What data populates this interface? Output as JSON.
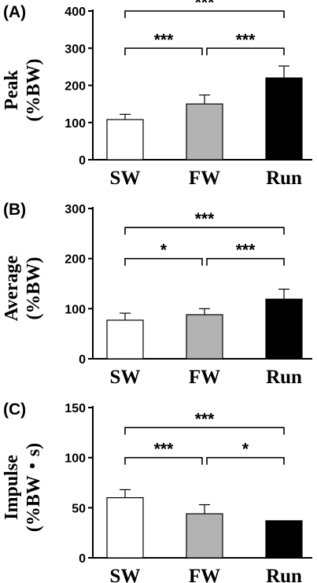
{
  "chart_data": [
    {
      "panel": "(A)",
      "type": "bar",
      "ylabel_line1": "Peak",
      "ylabel_line2": "(%BW)",
      "ylim": [
        0,
        400
      ],
      "yticks": [
        0,
        100,
        200,
        300,
        400
      ],
      "categories": [
        "SW",
        "FW",
        "Run"
      ],
      "values": [
        108,
        150,
        220
      ],
      "errors": [
        14,
        24,
        32
      ],
      "bar_colors": [
        "#ffffff",
        "#b3b3b3",
        "#000000"
      ],
      "significance": [
        {
          "from": 0,
          "to": 2,
          "label": "***",
          "level": 400
        },
        {
          "from": 0,
          "to": 1,
          "label": "***",
          "level": 300
        },
        {
          "from": 1,
          "to": 2,
          "label": "***",
          "level": 300
        }
      ]
    },
    {
      "panel": "(B)",
      "type": "bar",
      "ylabel_line1": "Average",
      "ylabel_line2": "(%BW)",
      "ylim": [
        0,
        300
      ],
      "yticks": [
        0,
        100,
        200,
        300
      ],
      "categories": [
        "SW",
        "FW",
        "Run"
      ],
      "values": [
        77,
        88,
        119
      ],
      "errors": [
        14,
        12,
        20
      ],
      "bar_colors": [
        "#ffffff",
        "#b3b3b3",
        "#000000"
      ],
      "significance": [
        {
          "from": 0,
          "to": 2,
          "label": "***",
          "level": 262
        },
        {
          "from": 0,
          "to": 1,
          "label": "*",
          "level": 200
        },
        {
          "from": 1,
          "to": 2,
          "label": "***",
          "level": 200
        }
      ]
    },
    {
      "panel": "(C)",
      "type": "bar",
      "ylabel_line1": "Impulse",
      "ylabel_line2": "(%BW・s)",
      "ylim": [
        0,
        150
      ],
      "yticks": [
        0,
        50,
        100,
        150
      ],
      "categories": [
        "SW",
        "FW",
        "Run"
      ],
      "values": [
        60,
        44,
        37
      ],
      "errors": [
        8,
        9,
        0
      ],
      "bar_colors": [
        "#ffffff",
        "#b3b3b3",
        "#000000"
      ],
      "significance": [
        {
          "from": 0,
          "to": 2,
          "label": "***",
          "level": 130
        },
        {
          "from": 0,
          "to": 1,
          "label": "***",
          "level": 100
        },
        {
          "from": 1,
          "to": 2,
          "label": "*",
          "level": 100
        }
      ]
    }
  ]
}
